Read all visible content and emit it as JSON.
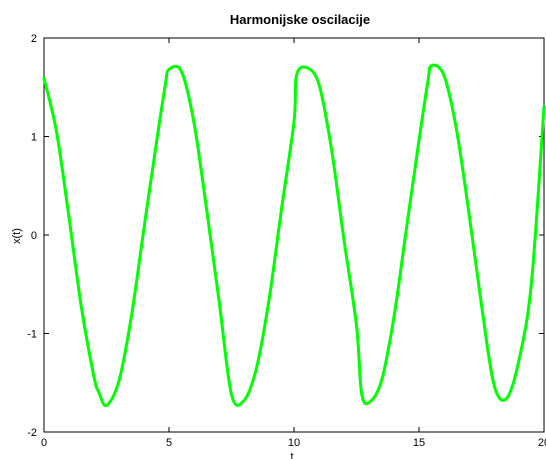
{
  "chart_data": {
    "type": "line",
    "title": "Harmonijske oscilacije",
    "xlabel": "t",
    "ylabel": "x(t)",
    "xlim": [
      0,
      20
    ],
    "ylim": [
      -2,
      2
    ],
    "xticks": [
      "0",
      "5",
      "10",
      "15",
      "20"
    ],
    "yticks": [
      "-2",
      "-1",
      "0",
      "1",
      "2"
    ],
    "grid": false,
    "legend": "none",
    "series_color": "#00ff00",
    "series": [
      {
        "x": [
          0,
          0.5,
          1,
          1.5,
          2,
          2.2,
          2.5,
          3,
          3.5,
          4,
          4.5,
          4.85,
          5,
          5.5,
          6,
          6.5,
          7,
          7.5,
          8,
          8.5,
          9,
          9.5,
          10,
          10.1,
          10.5,
          11,
          11.5,
          12,
          12.5,
          12.7,
          13,
          13.5,
          14,
          14.5,
          15,
          15.35,
          15.5,
          16,
          16.5,
          17,
          17.5,
          18,
          18.5,
          19,
          19.5,
          20
        ],
        "y": [
          1.59,
          1.05,
          0.18,
          -0.74,
          -1.44,
          -1.6,
          -1.73,
          -1.48,
          -0.82,
          0.07,
          0.94,
          1.52,
          1.68,
          1.66,
          1.14,
          0.27,
          -0.66,
          -1.62,
          -1.68,
          -1.35,
          -0.66,
          0.26,
          1.15,
          1.62,
          1.7,
          1.53,
          0.87,
          -0.05,
          -0.92,
          -1.6,
          -1.7,
          -1.48,
          -0.83,
          0.07,
          0.96,
          1.55,
          1.72,
          1.62,
          1.07,
          0.22,
          -0.71,
          -1.52,
          -1.66,
          -1.27,
          -0.48,
          1.3
        ]
      }
    ]
  }
}
